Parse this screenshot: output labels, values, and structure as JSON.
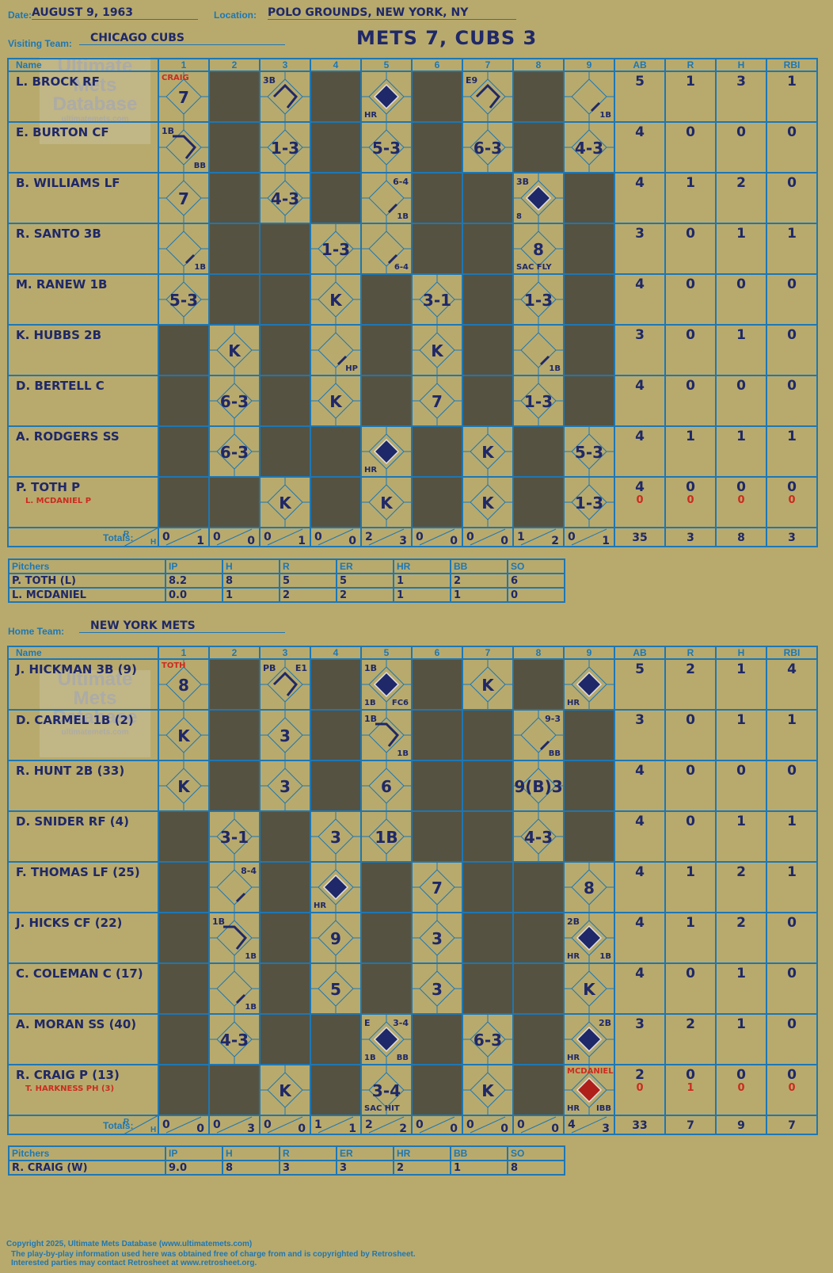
{
  "header": {
    "date_label": "Date:",
    "date_value": "AUGUST 9, 1963",
    "location_label": "Location:",
    "location_value": "POLO GROUNDS, NEW YORK, NY",
    "game_title": "METS 7, CUBS 3"
  },
  "visiting": {
    "team_label": "Visiting Team:",
    "team_name": "CHICAGO CUBS",
    "innings": [
      "1",
      "2",
      "3",
      "4",
      "5",
      "6",
      "7",
      "8",
      "9"
    ],
    "stat_headers": [
      "AB",
      "R",
      "H",
      "RBI"
    ],
    "name_header": "Name",
    "players": [
      {
        "name": "L. BROCK RF",
        "stats": [
          "5",
          "1",
          "3",
          "1"
        ]
      },
      {
        "name": "E. BURTON CF",
        "stats": [
          "4",
          "0",
          "0",
          "0"
        ]
      },
      {
        "name": "B. WILLIAMS LF",
        "stats": [
          "4",
          "1",
          "2",
          "0"
        ]
      },
      {
        "name": "R. SANTO 3B",
        "stats": [
          "3",
          "0",
          "1",
          "1"
        ]
      },
      {
        "name": "M. RANEW 1B",
        "stats": [
          "4",
          "0",
          "0",
          "0"
        ]
      },
      {
        "name": "K. HUBBS 2B",
        "stats": [
          "3",
          "0",
          "1",
          "0"
        ]
      },
      {
        "name": "D. BERTELL C",
        "stats": [
          "4",
          "0",
          "0",
          "0"
        ]
      },
      {
        "name": "A. RODGERS SS",
        "stats": [
          "4",
          "1",
          "1",
          "1"
        ]
      },
      {
        "name": "P. TOTH P",
        "sub": "L. MCDANIEL P",
        "stats": [
          "4",
          "0",
          "0",
          "0"
        ],
        "sub_stats": [
          "0",
          "0",
          "0",
          "0"
        ]
      }
    ],
    "cells": [
      [
        {
          "t": "7",
          "n": "CRAIG"
        },
        {
          "d": 1
        },
        {
          "t": "",
          "tl": "3B",
          "dia": "open3"
        },
        {
          "d": 1
        },
        {
          "t": "",
          "bl": "HR",
          "dia": "filled"
        },
        {
          "d": 1
        },
        {
          "t": "",
          "tl": "E9",
          "dia": "open3"
        },
        {
          "d": 1
        },
        {
          "t": "",
          "br": "1B",
          "dia": "one"
        }
      ],
      [
        {
          "t": "",
          "tl": "1B",
          "br": "BB",
          "dia": "open2"
        },
        {
          "d": 1
        },
        {
          "t": "1-3"
        },
        {
          "d": 1
        },
        {
          "t": "5-3"
        },
        {
          "d": 1
        },
        {
          "t": "6-3"
        },
        {
          "d": 1
        },
        {
          "t": "4-3"
        }
      ],
      [
        {
          "t": "7"
        },
        {
          "d": 1
        },
        {
          "t": "4-3"
        },
        {
          "d": 1
        },
        {
          "t": "",
          "tr": "6-4",
          "br": "1B",
          "dia": "one"
        },
        {
          "d": 1
        },
        {
          "d": 1
        },
        {
          "t": "",
          "tl": "3B",
          "bl": "8",
          "dia": "filled"
        },
        {
          "d": 1
        }
      ],
      [
        {
          "t": "",
          "br": "1B",
          "dia": "one"
        },
        {
          "d": 1
        },
        {
          "d": 1
        },
        {
          "t": "1-3"
        },
        {
          "t": "",
          "br": "6-4",
          "dia": "one"
        },
        {
          "d": 1
        },
        {
          "d": 1
        },
        {
          "t": "8",
          "bl": "SAC FLY"
        },
        {
          "d": 1
        }
      ],
      [
        {
          "t": "5-3"
        },
        {
          "d": 1
        },
        {
          "d": 1
        },
        {
          "t": "K"
        },
        {
          "d": 1
        },
        {
          "t": "3-1"
        },
        {
          "d": 1
        },
        {
          "t": "1-3"
        },
        {
          "d": 1
        }
      ],
      [
        {
          "d": 1
        },
        {
          "t": "K"
        },
        {
          "d": 1
        },
        {
          "t": "",
          "br": "HP",
          "dia": "one"
        },
        {
          "d": 1
        },
        {
          "t": "K"
        },
        {
          "d": 1
        },
        {
          "t": "",
          "br": "1B",
          "dia": "one"
        },
        {
          "d": 1
        }
      ],
      [
        {
          "d": 1
        },
        {
          "t": "6-3"
        },
        {
          "d": 1
        },
        {
          "t": "K"
        },
        {
          "d": 1
        },
        {
          "t": "7"
        },
        {
          "d": 1
        },
        {
          "t": "1-3"
        },
        {
          "d": 1
        }
      ],
      [
        {
          "d": 1
        },
        {
          "t": "6-3"
        },
        {
          "d": 1
        },
        {
          "d": 1
        },
        {
          "t": "",
          "bl": "HR",
          "dia": "filled"
        },
        {
          "d": 1
        },
        {
          "t": "K"
        },
        {
          "d": 1
        },
        {
          "t": "5-3"
        }
      ],
      [
        {
          "d": 1
        },
        {
          "d": 1
        },
        {
          "t": "K"
        },
        {
          "d": 1
        },
        {
          "t": "K"
        },
        {
          "d": 1
        },
        {
          "t": "K"
        },
        {
          "d": 1
        },
        {
          "t": "1-3"
        }
      ]
    ],
    "totals_label": "Totals:",
    "totals_rh": [
      "R",
      "H"
    ],
    "inning_totals": [
      [
        "0",
        "1"
      ],
      [
        "0",
        "0"
      ],
      [
        "0",
        "1"
      ],
      [
        "0",
        "0"
      ],
      [
        "2",
        "3"
      ],
      [
        "0",
        "0"
      ],
      [
        "0",
        "0"
      ],
      [
        "1",
        "2"
      ],
      [
        "0",
        "1"
      ]
    ],
    "stat_totals": [
      "35",
      "3",
      "8",
      "3"
    ],
    "pitching": {
      "headers": [
        "Pitchers",
        "IP",
        "H",
        "R",
        "ER",
        "HR",
        "BB",
        "SO"
      ],
      "rows": [
        [
          "P. TOTH (L)",
          "8.2",
          "8",
          "5",
          "5",
          "1",
          "2",
          "6"
        ],
        [
          "L. MCDANIEL",
          "0.0",
          "1",
          "2",
          "2",
          "1",
          "1",
          "0"
        ]
      ]
    }
  },
  "home": {
    "team_label": "Home Team:",
    "team_name": "NEW YORK METS",
    "innings": [
      "1",
      "2",
      "3",
      "4",
      "5",
      "6",
      "7",
      "8",
      "9"
    ],
    "stat_headers": [
      "AB",
      "R",
      "H",
      "RBI"
    ],
    "name_header": "Name",
    "players": [
      {
        "name": "J. HICKMAN 3B (9)",
        "stats": [
          "5",
          "2",
          "1",
          "4"
        ]
      },
      {
        "name": "D. CARMEL 1B (2)",
        "stats": [
          "3",
          "0",
          "1",
          "1"
        ]
      },
      {
        "name": "R. HUNT 2B (33)",
        "stats": [
          "4",
          "0",
          "0",
          "0"
        ]
      },
      {
        "name": "D. SNIDER RF (4)",
        "stats": [
          "4",
          "0",
          "1",
          "1"
        ]
      },
      {
        "name": "F. THOMAS LF (25)",
        "stats": [
          "4",
          "1",
          "2",
          "1"
        ]
      },
      {
        "name": "J. HICKS CF (22)",
        "stats": [
          "4",
          "1",
          "2",
          "0"
        ]
      },
      {
        "name": "C. COLEMAN C (17)",
        "stats": [
          "4",
          "0",
          "1",
          "0"
        ]
      },
      {
        "name": "A. MORAN SS (40)",
        "stats": [
          "3",
          "2",
          "1",
          "0"
        ]
      },
      {
        "name": "R. CRAIG P (13)",
        "sub": "T. HARKNESS PH (3)",
        "stats": [
          "2",
          "0",
          "0",
          "0"
        ],
        "sub_stats": [
          "0",
          "1",
          "0",
          "0"
        ]
      }
    ],
    "cells": [
      [
        {
          "t": "8",
          "n": "TOTH"
        },
        {
          "d": 1
        },
        {
          "t": "",
          "tl": "PB",
          "tr": "E1",
          "dia": "open3"
        },
        {
          "d": 1
        },
        {
          "t": "",
          "tl": "1B",
          "bl": "1B",
          "br": "FC6",
          "dia": "filled"
        },
        {
          "d": 1
        },
        {
          "t": "K"
        },
        {
          "d": 1
        },
        {
          "t": "",
          "bl": "HR",
          "dia": "filled"
        }
      ],
      [
        {
          "t": "K"
        },
        {
          "d": 1
        },
        {
          "t": "3"
        },
        {
          "d": 1
        },
        {
          "t": "",
          "tl": "1B",
          "br": "1B",
          "dia": "open2"
        },
        {
          "d": 1
        },
        {
          "d": 1
        },
        {
          "t": "",
          "tr": "9-3",
          "br": "BB",
          "dia": "one"
        },
        {
          "d": 1
        }
      ],
      [
        {
          "t": "K"
        },
        {
          "d": 1
        },
        {
          "t": "3"
        },
        {
          "d": 1
        },
        {
          "t": "6"
        },
        {
          "d": 1
        },
        {
          "d": 1
        },
        {
          "t": "9(B)3"
        },
        {
          "d": 1
        }
      ],
      [
        {
          "d": 1
        },
        {
          "t": "3-1"
        },
        {
          "d": 1
        },
        {
          "t": "3"
        },
        {
          "t": "1B"
        },
        {
          "d": 1
        },
        {
          "d": 1
        },
        {
          "t": "4-3"
        },
        {
          "d": 1
        }
      ],
      [
        {
          "d": 1
        },
        {
          "t": "",
          "tr": "8-4",
          "dia": "one"
        },
        {
          "d": 1
        },
        {
          "t": "",
          "bl": "HR",
          "dia": "filled"
        },
        {
          "d": 1
        },
        {
          "t": "7"
        },
        {
          "d": 1
        },
        {
          "d": 1
        },
        {
          "t": "8"
        }
      ],
      [
        {
          "d": 1
        },
        {
          "t": "",
          "tl": "1B",
          "br": "1B",
          "dia": "open2"
        },
        {
          "d": 1
        },
        {
          "t": "9"
        },
        {
          "d": 1
        },
        {
          "t": "3"
        },
        {
          "d": 1
        },
        {
          "d": 1
        },
        {
          "t": "",
          "tl": "2B",
          "bl": "HR",
          "br": "1B",
          "dia": "filled"
        }
      ],
      [
        {
          "d": 1
        },
        {
          "t": "",
          "br": "1B",
          "dia": "one"
        },
        {
          "d": 1
        },
        {
          "t": "5"
        },
        {
          "d": 1
        },
        {
          "t": "3"
        },
        {
          "d": 1
        },
        {
          "d": 1
        },
        {
          "t": "K"
        }
      ],
      [
        {
          "d": 1
        },
        {
          "t": "4-3"
        },
        {
          "d": 1
        },
        {
          "d": 1
        },
        {
          "t": "",
          "tl": "E",
          "tr": "3-4",
          "bl": "1B",
          "br": "BB",
          "dia": "filled"
        },
        {
          "d": 1
        },
        {
          "t": "6-3"
        },
        {
          "d": 1
        },
        {
          "t": "",
          "tr": "2B",
          "bl": "HR",
          "dia": "filled"
        }
      ],
      [
        {
          "d": 1
        },
        {
          "d": 1
        },
        {
          "t": "K"
        },
        {
          "d": 1
        },
        {
          "t": "3-4",
          "bl": "SAC HIT"
        },
        {
          "d": 1
        },
        {
          "t": "K"
        },
        {
          "d": 1
        },
        {
          "t": "",
          "n": "MCDANIEL",
          "bl": "HR",
          "br": "IBB",
          "dia": "red"
        }
      ]
    ],
    "totals_label": "Totals:",
    "totals_rh": [
      "R",
      "H"
    ],
    "inning_totals": [
      [
        "0",
        "0"
      ],
      [
        "0",
        "3"
      ],
      [
        "0",
        "0"
      ],
      [
        "1",
        "1"
      ],
      [
        "2",
        "2"
      ],
      [
        "0",
        "0"
      ],
      [
        "0",
        "0"
      ],
      [
        "0",
        "0"
      ],
      [
        "4",
        "3"
      ]
    ],
    "stat_totals": [
      "33",
      "7",
      "9",
      "7"
    ],
    "pitching": {
      "headers": [
        "Pitchers",
        "IP",
        "H",
        "R",
        "ER",
        "HR",
        "BB",
        "SO"
      ],
      "rows": [
        [
          "R. CRAIG (W)",
          "9.0",
          "8",
          "3",
          "3",
          "2",
          "1",
          "8"
        ]
      ]
    }
  },
  "watermark": {
    "line1": "Ultimate",
    "line2": "Mets",
    "line3": "Database",
    "line4": "ultimatemets.com"
  },
  "footer": {
    "line1": "Copyright 2025, Ultimate Mets Database (www.ultimatemets.com)",
    "line2": "The play-by-play information used here was obtained free of charge from and is copyrighted by Retrosheet.",
    "line3": "Interested parties may contact Retrosheet at www.retrosheet.org."
  },
  "colors": {
    "background": "#b8aa6d",
    "grid": "#1d77b5",
    "dark_cell": "#555241",
    "ink": "#1f2868",
    "red_ink": "#cc2b20"
  }
}
